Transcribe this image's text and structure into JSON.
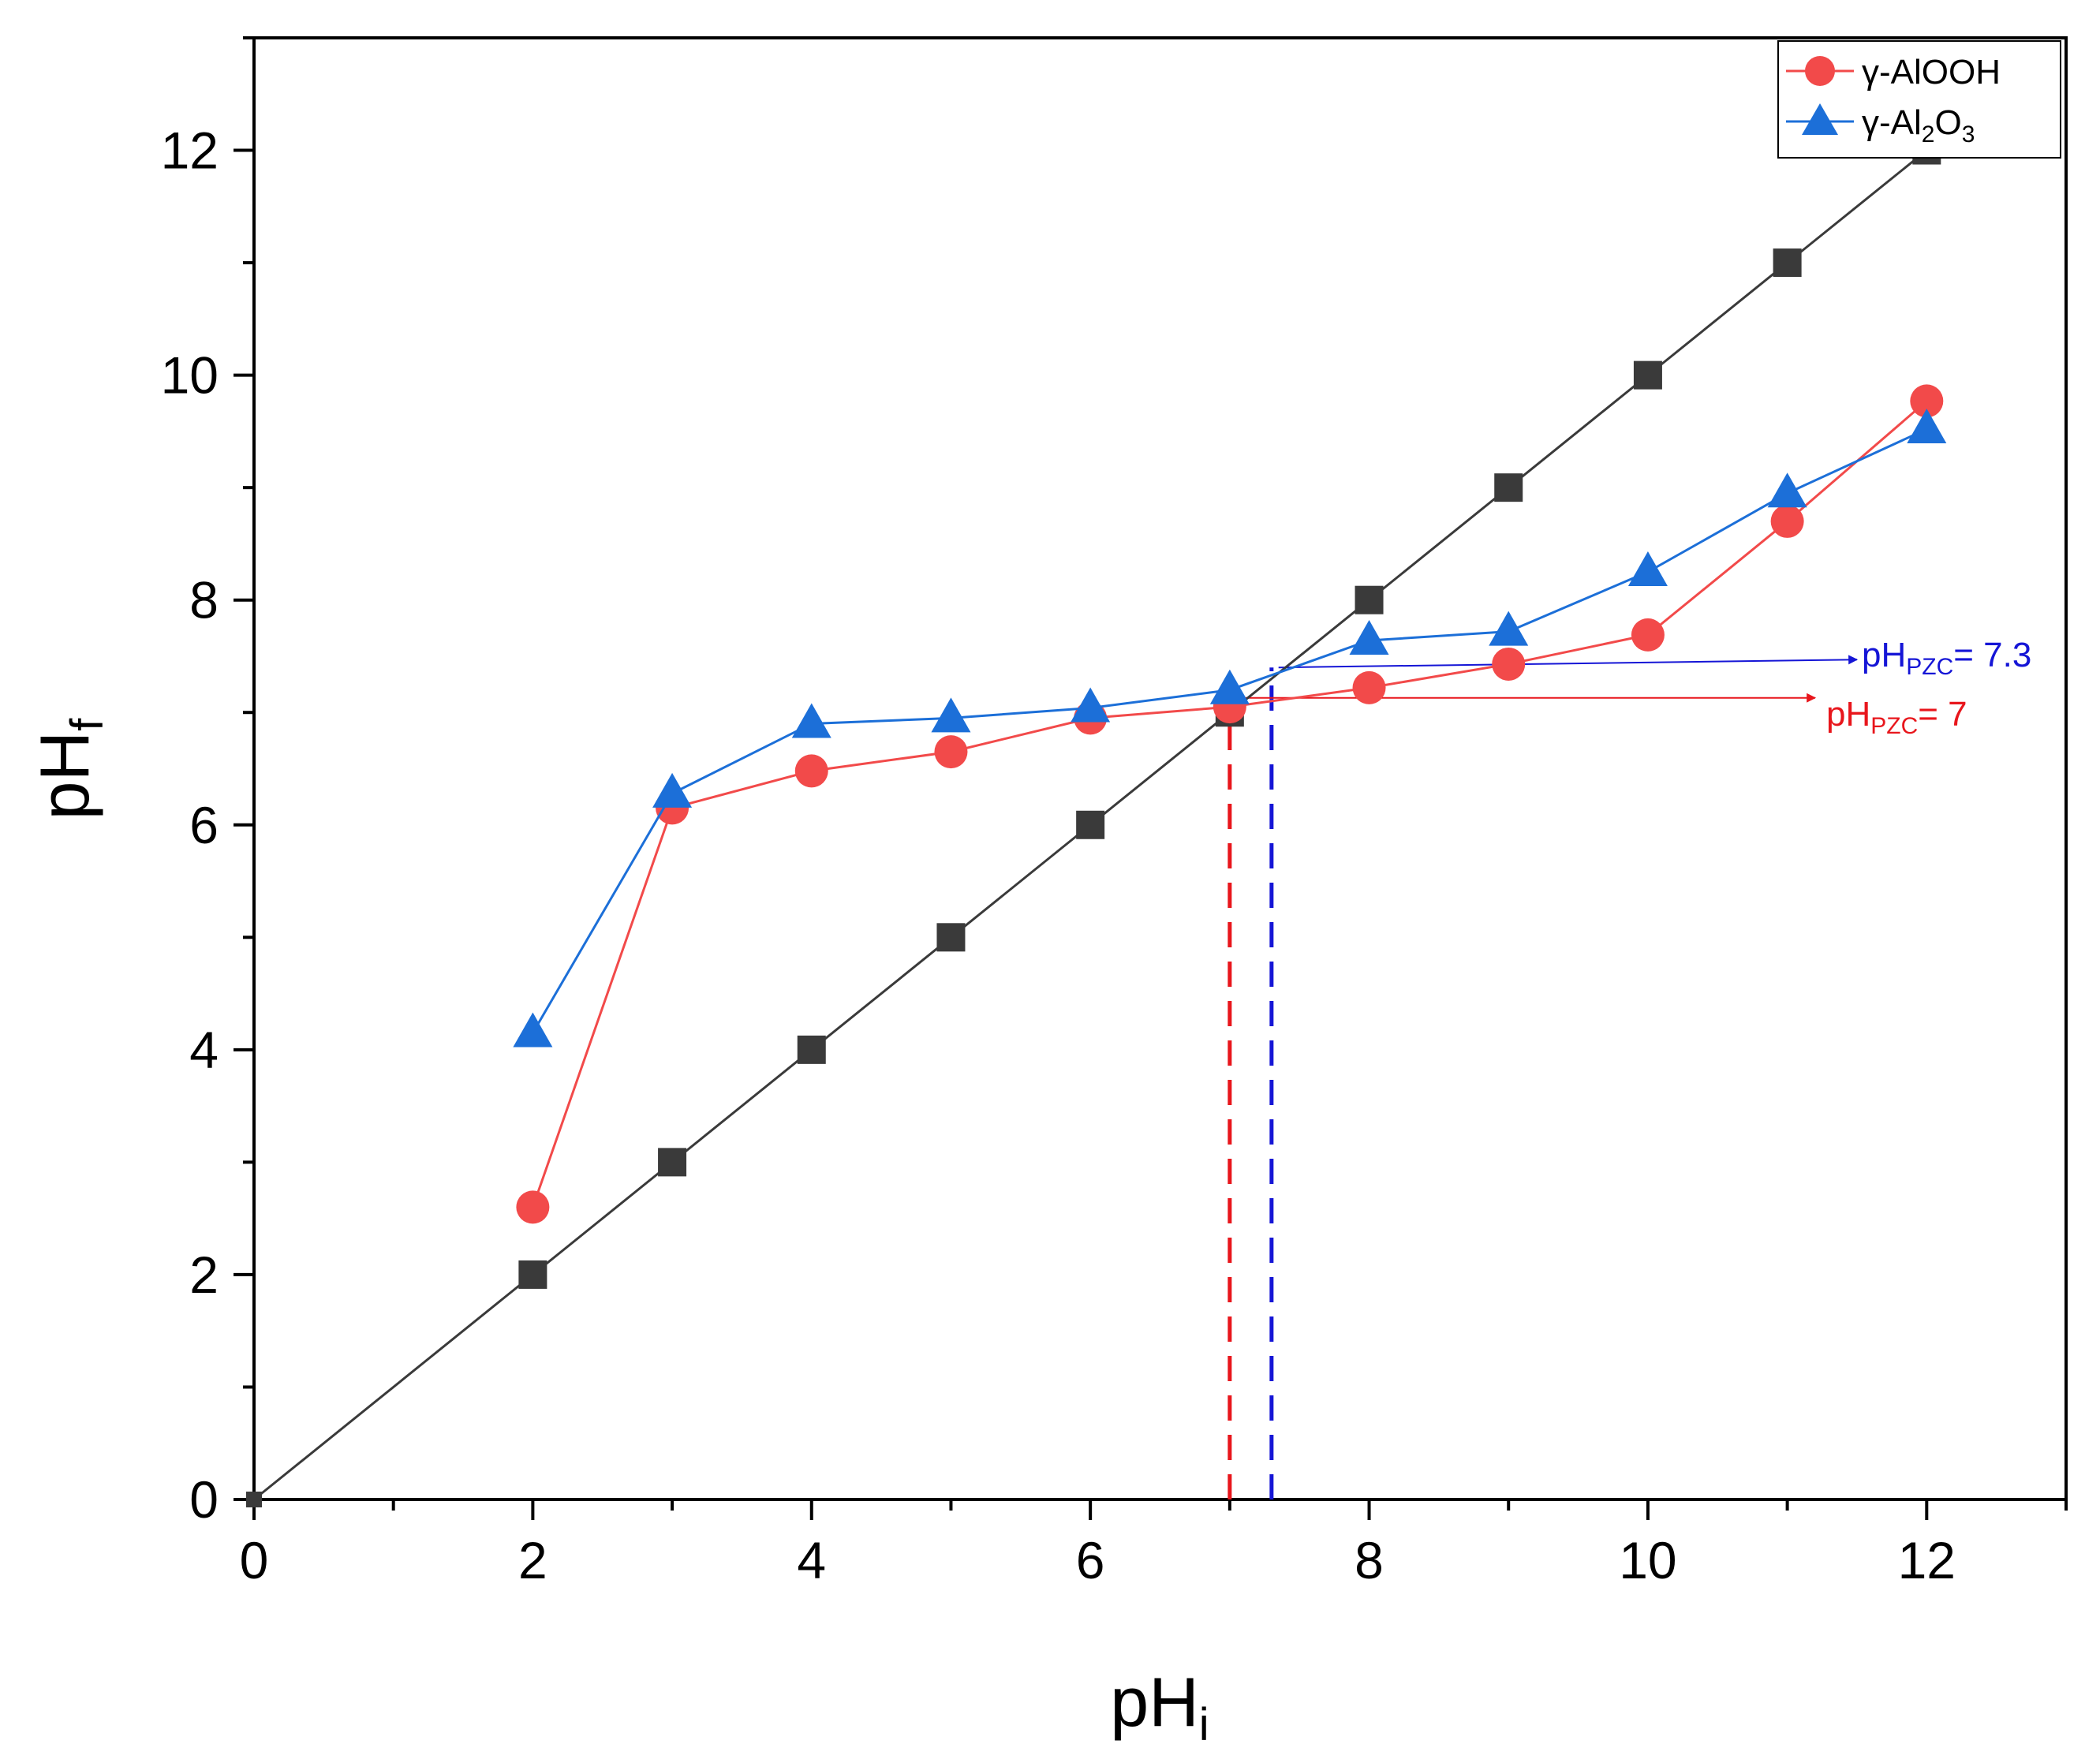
{
  "chart_data": {
    "type": "line",
    "title": "",
    "xlabel": {
      "main": "pH",
      "sub": "i"
    },
    "ylabel": {
      "main": "pH",
      "sub": "f"
    },
    "xlim": [
      0,
      13
    ],
    "ylim": [
      0,
      13
    ],
    "xticks": [
      0,
      2,
      4,
      6,
      8,
      10,
      12
    ],
    "yticks": [
      0,
      2,
      4,
      6,
      8,
      10,
      12
    ],
    "minor_ticks": [
      1,
      3,
      5,
      7,
      9,
      11,
      13
    ],
    "grid": false,
    "legend_position": "top-right",
    "series": [
      {
        "name": "reference",
        "color": "#3a3a3a",
        "marker": "square",
        "in_legend": false,
        "x": [
          0,
          2,
          3,
          4,
          5,
          6,
          7,
          8,
          9,
          10,
          11,
          12
        ],
        "y": [
          0,
          2,
          3,
          4,
          5,
          6,
          7,
          8,
          9,
          10,
          11,
          12
        ]
      },
      {
        "name": "γ-AlOOH",
        "label_parts": [
          "γ-AlOOH"
        ],
        "color": "#f24a4a",
        "marker": "circle",
        "in_legend": true,
        "x": [
          2,
          3,
          4,
          5,
          6,
          7,
          8,
          9,
          10,
          11,
          12
        ],
        "y": [
          2.6,
          6.15,
          6.48,
          6.65,
          6.95,
          7.05,
          7.22,
          7.43,
          7.69,
          8.7,
          9.77
        ]
      },
      {
        "name": "γ-Al2O3",
        "label_parts": [
          "γ-Al",
          "2",
          "O",
          "3"
        ],
        "color": "#1c6fd8",
        "marker": "triangle",
        "in_legend": true,
        "x": [
          2,
          3,
          4,
          5,
          6,
          7,
          8,
          9,
          10,
          11,
          12
        ],
        "y": [
          4.15,
          6.28,
          6.9,
          6.95,
          7.04,
          7.2,
          7.64,
          7.72,
          8.25,
          8.95,
          9.52
        ]
      }
    ],
    "annotations": [
      {
        "name": "blue-pzc",
        "text_main": "pH",
        "text_sub": "PZC",
        "text_value": "= 7.3",
        "color": "#1515d6",
        "vline_x": 7.3,
        "arrow_from": [
          7.35,
          7.4
        ],
        "arrow_to": [
          11.5,
          7.47
        ]
      },
      {
        "name": "red-pzc",
        "text_main": "pH",
        "text_sub": "PZC",
        "text_value": "= 7",
        "color": "#e8161c",
        "vline_x": 7.0,
        "arrow_from": [
          7.05,
          7.13
        ],
        "arrow_to": [
          11.2,
          7.13
        ]
      }
    ]
  }
}
